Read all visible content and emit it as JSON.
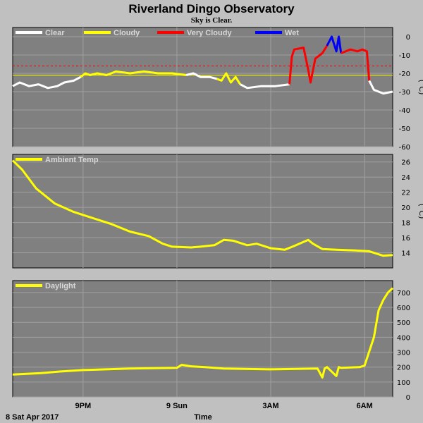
{
  "title": "Riverland Dingo Observatory",
  "subtitle": "Sky is Clear.",
  "xlabel": "Time",
  "date_label": "8 Sat Apr 2017",
  "colors": {
    "clear": "#ffffff",
    "cloudy": "#ffff00",
    "very_cloudy": "#ff0000",
    "wet": "#0000ff",
    "plot_bg": "#808080",
    "grid": "#a0a0a0",
    "threshold": "#ff0000"
  },
  "chart_data": [
    {
      "type": "line",
      "ylabel": "(°C)",
      "ylim": [
        -60,
        5
      ],
      "yticks": [
        0,
        -10,
        -20,
        -30,
        -40,
        -50,
        -60
      ],
      "xlim": [
        0,
        7.8
      ],
      "xticks": [
        {
          "x": 1.5,
          "label": "9PM"
        },
        {
          "x": 3.5,
          "label": "9 Sun"
        },
        {
          "x": 5.5,
          "label": "3AM"
        },
        {
          "x": 7.5,
          "label": "6AM"
        }
      ],
      "legend": [
        {
          "name": "Clear",
          "color": "#ffffff"
        },
        {
          "name": "Cloudy",
          "color": "#ffff00"
        },
        {
          "name": "Very Cloudy",
          "color": "#ff0000"
        },
        {
          "name": "Wet",
          "color": "#0000ff"
        }
      ],
      "threshold_lines": [
        {
          "y": -16,
          "color": "#ff0000",
          "dashed": true
        },
        {
          "y": -21,
          "color": "#ffff00",
          "dashed": false
        }
      ],
      "segments": [
        {
          "condition": "clear",
          "points": [
            [
              0.0,
              -27
            ],
            [
              0.15,
              -25
            ],
            [
              0.35,
              -27
            ],
            [
              0.55,
              -26
            ],
            [
              0.75,
              -28
            ],
            [
              0.95,
              -27
            ],
            [
              1.1,
              -25
            ],
            [
              1.3,
              -24
            ],
            [
              1.45,
              -22
            ]
          ]
        },
        {
          "condition": "cloudy",
          "points": [
            [
              1.45,
              -22
            ],
            [
              1.55,
              -20
            ],
            [
              1.65,
              -21
            ],
            [
              1.8,
              -20
            ],
            [
              2.0,
              -21
            ],
            [
              2.2,
              -19
            ],
            [
              2.5,
              -20
            ],
            [
              2.8,
              -19
            ],
            [
              3.1,
              -20
            ],
            [
              3.4,
              -20
            ],
            [
              3.7,
              -21
            ]
          ]
        },
        {
          "condition": "clear",
          "points": [
            [
              3.7,
              -21
            ],
            [
              3.85,
              -20
            ],
            [
              4.0,
              -22
            ],
            [
              4.2,
              -22
            ],
            [
              4.35,
              -23
            ]
          ]
        },
        {
          "condition": "cloudy",
          "points": [
            [
              4.35,
              -23
            ],
            [
              4.45,
              -24
            ],
            [
              4.55,
              -20
            ],
            [
              4.65,
              -25
            ],
            [
              4.75,
              -22
            ],
            [
              4.85,
              -26
            ]
          ]
        },
        {
          "condition": "clear",
          "points": [
            [
              4.85,
              -26
            ],
            [
              5.0,
              -28
            ],
            [
              5.3,
              -27
            ],
            [
              5.6,
              -27
            ],
            [
              5.9,
              -26
            ]
          ]
        },
        {
          "condition": "very_cloudy",
          "points": [
            [
              5.9,
              -26
            ],
            [
              5.95,
              -11
            ],
            [
              6.0,
              -7
            ],
            [
              6.2,
              -6
            ],
            [
              6.3,
              -18
            ],
            [
              6.35,
              -25
            ],
            [
              6.45,
              -12
            ],
            [
              6.6,
              -9
            ],
            [
              6.7,
              -5
            ]
          ]
        },
        {
          "condition": "wet",
          "points": [
            [
              6.7,
              -5
            ],
            [
              6.8,
              0
            ],
            [
              6.9,
              -8
            ],
            [
              6.95,
              0
            ],
            [
              7.0,
              -9
            ]
          ]
        },
        {
          "condition": "very_cloudy",
          "points": [
            [
              7.0,
              -9
            ],
            [
              7.2,
              -7
            ],
            [
              7.35,
              -8
            ],
            [
              7.45,
              -7
            ],
            [
              7.55,
              -8
            ],
            [
              7.6,
              -24
            ]
          ]
        },
        {
          "condition": "clear",
          "points": [
            [
              7.6,
              -24
            ],
            [
              7.7,
              -29
            ],
            [
              7.8,
              -30
            ],
            [
              7.9,
              -31
            ],
            [
              8.1,
              -30
            ]
          ]
        }
      ]
    },
    {
      "type": "line",
      "ylabel": "(°C)",
      "ylim": [
        12,
        27
      ],
      "yticks": [
        26,
        24,
        22,
        20,
        18,
        16,
        14
      ],
      "xlim": [
        0,
        7.8
      ],
      "xticks": [
        {
          "x": 1.5,
          "label": "9PM"
        },
        {
          "x": 3.5,
          "label": "9 Sun"
        },
        {
          "x": 5.5,
          "label": "3AM"
        },
        {
          "x": 7.5,
          "label": "6AM"
        }
      ],
      "series": [
        {
          "name": "Ambient Temp",
          "color": "#ffff00",
          "x": [
            0.0,
            0.2,
            0.5,
            0.9,
            1.3,
            1.7,
            2.1,
            2.5,
            2.9,
            3.2,
            3.4,
            3.8,
            4.0,
            4.3,
            4.5,
            4.7,
            5.0,
            5.2,
            5.5,
            5.8,
            6.0,
            6.3,
            6.4,
            6.6,
            6.9,
            7.3,
            7.6,
            7.9,
            8.1
          ],
          "y": [
            26.2,
            25,
            22.5,
            20.5,
            19.4,
            18.6,
            17.8,
            16.8,
            16.2,
            15.2,
            14.8,
            14.7,
            14.8,
            15.0,
            15.7,
            15.6,
            15.0,
            15.2,
            14.6,
            14.4,
            14.9,
            15.7,
            15.2,
            14.5,
            14.4,
            14.3,
            14.2,
            13.6,
            13.7
          ]
        }
      ]
    },
    {
      "type": "line",
      "ylabel": "",
      "ylim": [
        0,
        780
      ],
      "yticks": [
        700,
        600,
        500,
        400,
        300,
        200,
        100,
        0
      ],
      "xlim": [
        0,
        7.8
      ],
      "xticks": [
        {
          "x": 1.5,
          "label": "9PM"
        },
        {
          "x": 3.5,
          "label": "9 Sun"
        },
        {
          "x": 5.5,
          "label": "3AM"
        },
        {
          "x": 7.5,
          "label": "6AM"
        }
      ],
      "series": [
        {
          "name": "Daylight",
          "color": "#ffff00",
          "x": [
            0.0,
            0.6,
            1.0,
            1.5,
            2.5,
            3.5,
            3.6,
            3.8,
            4.1,
            4.5,
            5.5,
            6.5,
            6.6,
            6.65,
            6.7,
            6.9,
            6.95,
            7.0,
            7.4,
            7.5,
            7.7,
            7.8,
            7.9,
            8.0,
            8.1
          ],
          "y": [
            150,
            160,
            170,
            180,
            190,
            195,
            215,
            205,
            200,
            190,
            185,
            190,
            130,
            190,
            200,
            140,
            200,
            195,
            200,
            210,
            400,
            580,
            650,
            700,
            730
          ]
        }
      ]
    }
  ]
}
